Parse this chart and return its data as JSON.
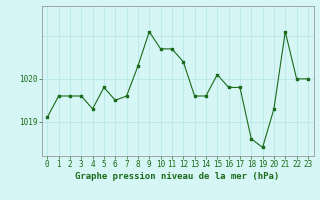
{
  "x": [
    0,
    1,
    2,
    3,
    4,
    5,
    6,
    7,
    8,
    9,
    10,
    11,
    12,
    13,
    14,
    15,
    16,
    17,
    18,
    19,
    20,
    21,
    22,
    23
  ],
  "y": [
    1019.1,
    1019.6,
    1019.6,
    1019.6,
    1019.3,
    1019.8,
    1019.5,
    1019.6,
    1020.3,
    1021.1,
    1020.7,
    1020.7,
    1020.4,
    1019.6,
    1019.6,
    1020.1,
    1019.8,
    1019.8,
    1018.6,
    1018.4,
    1019.3,
    1021.1,
    1020.0,
    1020.0
  ],
  "line_color": "#1a6b1a",
  "marker_color": "#1a6b1a",
  "bg_color": "#d6f5f5",
  "grid_color": "#b8e8e8",
  "axis_color": "#555555",
  "tick_color": "#1a6b1a",
  "label_color": "#1a6b1a",
  "xlabel": "Graphe pression niveau de la mer (hPa)",
  "ytick_labels": [
    "1019",
    "1020"
  ],
  "ytick_values": [
    1019.0,
    1020.0
  ],
  "ylim": [
    1018.2,
    1021.7
  ],
  "xlim": [
    -0.5,
    23.5
  ],
  "tick_fontsize": 5.5,
  "label_fontsize": 6.5
}
